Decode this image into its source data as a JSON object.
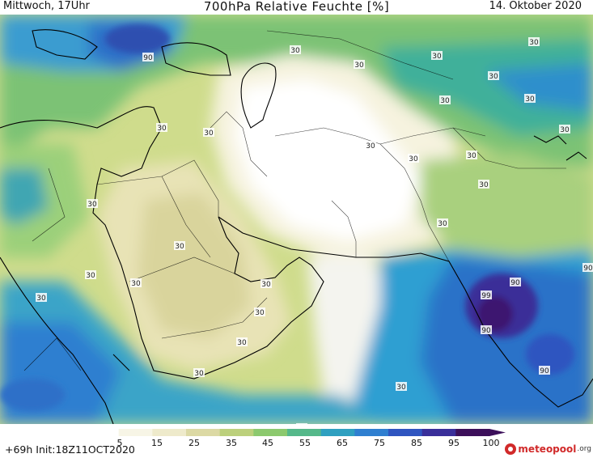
{
  "header": {
    "left": "Mittwoch, 17Uhr",
    "title": "700hPa Relative Feuchte [%]",
    "right": "14. Oktober 2020"
  },
  "footer": {
    "left": "+69h  Init:18Z11OCT2020",
    "logo_name": "meteopool",
    "logo_tld": ".org"
  },
  "legend": {
    "ticks": [
      "5",
      "15",
      "25",
      "35",
      "45",
      "55",
      "65",
      "75",
      "85",
      "95",
      "100"
    ],
    "colors": [
      "#ffffff",
      "#f7f5e6",
      "#eeeacb",
      "#dcd9a4",
      "#bcd07c",
      "#8cc96e",
      "#55b88a",
      "#2fa0c0",
      "#2f7fd0",
      "#2f55c0",
      "#3a2f9a",
      "#3c0f5a"
    ]
  },
  "map": {
    "contour_labels": [
      {
        "text": "90"
      },
      {
        "text": "30"
      },
      {
        "text": "30"
      },
      {
        "text": "30"
      },
      {
        "text": "30"
      },
      {
        "text": "30"
      },
      {
        "text": "30"
      },
      {
        "text": "30"
      },
      {
        "text": "30"
      },
      {
        "text": "30"
      },
      {
        "text": "30"
      },
      {
        "text": "30"
      },
      {
        "text": "30"
      },
      {
        "text": "30"
      },
      {
        "text": "30"
      },
      {
        "text": "30"
      },
      {
        "text": "30"
      },
      {
        "text": "30"
      },
      {
        "text": "30"
      },
      {
        "text": "30"
      },
      {
        "text": "30"
      },
      {
        "text": "30"
      },
      {
        "text": "30"
      },
      {
        "text": "30"
      },
      {
        "text": "30"
      },
      {
        "text": "30"
      },
      {
        "text": "30"
      },
      {
        "text": "90"
      },
      {
        "text": "99"
      },
      {
        "text": "90"
      },
      {
        "text": "90"
      },
      {
        "text": "90"
      }
    ]
  }
}
